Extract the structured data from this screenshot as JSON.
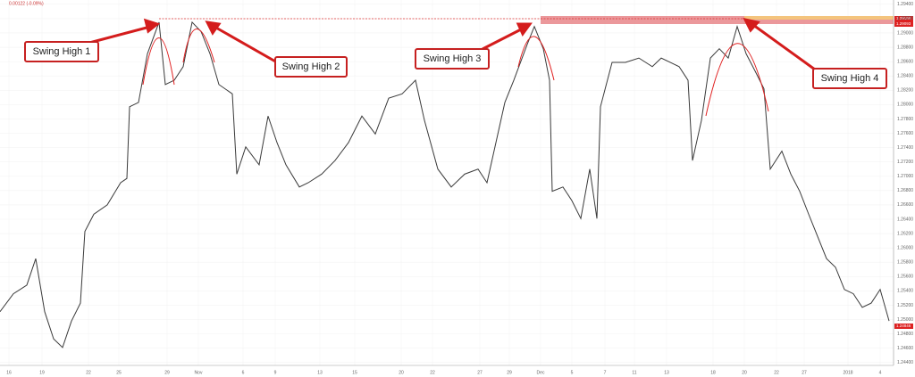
{
  "chart_data": {
    "type": "line",
    "subtitle": "0.00122 (-0.09%)",
    "annotations": [
      "Swing High 1",
      "Swing High 2",
      "Swing High 3",
      "Swing High 4"
    ],
    "price_labels": [
      "1.29168",
      "1.29093",
      "1.24846"
    ],
    "xlim": [
      0,
      1000
    ],
    "xticks": [
      {
        "value": 10,
        "label": "16"
      },
      {
        "value": 47,
        "label": "19"
      },
      {
        "value": 99,
        "label": "22"
      },
      {
        "value": 133,
        "label": "25"
      },
      {
        "value": 187,
        "label": "29"
      },
      {
        "value": 222,
        "label": "Nov"
      },
      {
        "value": 272,
        "label": "6"
      },
      {
        "value": 308,
        "label": "9"
      },
      {
        "value": 358,
        "label": "13"
      },
      {
        "value": 397,
        "label": "15"
      },
      {
        "value": 449,
        "label": "20"
      },
      {
        "value": 484,
        "label": "22"
      },
      {
        "value": 537,
        "label": "27"
      },
      {
        "value": 570,
        "label": "29"
      },
      {
        "value": 605,
        "label": "Dec"
      },
      {
        "value": 640,
        "label": "5"
      },
      {
        "value": 677,
        "label": "7"
      },
      {
        "value": 710,
        "label": "11"
      },
      {
        "value": 746,
        "label": "13"
      },
      {
        "value": 798,
        "label": "18"
      },
      {
        "value": 833,
        "label": "20"
      },
      {
        "value": 869,
        "label": "22"
      },
      {
        "value": 900,
        "label": "27"
      },
      {
        "value": 949,
        "label": "2018"
      },
      {
        "value": 985,
        "label": "4"
      }
    ],
    "ylim": [
      1.2436,
      1.2946
    ],
    "yticks": [
      {
        "value": 1.244,
        "label": "1.24400"
      },
      {
        "value": 1.246,
        "label": "1.24600"
      },
      {
        "value": 1.248,
        "label": "1.24800"
      },
      {
        "value": 1.25,
        "label": "1.25000"
      },
      {
        "value": 1.252,
        "label": "1.25200"
      },
      {
        "value": 1.254,
        "label": "1.25400"
      },
      {
        "value": 1.256,
        "label": "1.25600"
      },
      {
        "value": 1.258,
        "label": "1.25800"
      },
      {
        "value": 1.26,
        "label": "1.26000"
      },
      {
        "value": 1.262,
        "label": "1.26200"
      },
      {
        "value": 1.264,
        "label": "1.26400"
      },
      {
        "value": 1.266,
        "label": "1.26600"
      },
      {
        "value": 1.268,
        "label": "1.26800"
      },
      {
        "value": 1.27,
        "label": "1.27000"
      },
      {
        "value": 1.272,
        "label": "1.27200"
      },
      {
        "value": 1.274,
        "label": "1.27400"
      },
      {
        "value": 1.276,
        "label": "1.27600"
      },
      {
        "value": 1.278,
        "label": "1.27800"
      },
      {
        "value": 1.28,
        "label": "1.28000"
      },
      {
        "value": 1.282,
        "label": "1.28200"
      },
      {
        "value": 1.284,
        "label": "1.28400"
      },
      {
        "value": 1.286,
        "label": "1.28600"
      },
      {
        "value": 1.288,
        "label": "1.28800"
      },
      {
        "value": 1.29,
        "label": "1.29000"
      },
      {
        "value": 1.292,
        "label": "1.29200"
      },
      {
        "value": 1.294,
        "label": "1.29400"
      }
    ],
    "series": [
      {
        "color": "#3a3a3a",
        "x": [
          0,
          15,
          30,
          40,
          50,
          60,
          70,
          80,
          90,
          95,
          105,
          120,
          135,
          142,
          145,
          155,
          165,
          178,
          185,
          195,
          205,
          215,
          225,
          235,
          245,
          260,
          265,
          275,
          290,
          300,
          310,
          320,
          335,
          345,
          360,
          375,
          390,
          405,
          420,
          435,
          450,
          465,
          475,
          490,
          505,
          520,
          535,
          545,
          555,
          565,
          575,
          590,
          598,
          608,
          615,
          618,
          630,
          640,
          650,
          660,
          668,
          672,
          685,
          700,
          715,
          730,
          740,
          750,
          760,
          770,
          775,
          785,
          795,
          805,
          815,
          825,
          835,
          845,
          855,
          862,
          875,
          885,
          895,
          905,
          915,
          925,
          935,
          945,
          955,
          965,
          975,
          985,
          995
        ],
        "values": [
          1.2511,
          1.2536,
          1.2548,
          1.2585,
          1.2511,
          1.2473,
          1.2461,
          1.2498,
          1.2523,
          1.2623,
          1.2647,
          1.266,
          1.2691,
          1.2697,
          1.2797,
          1.2803,
          1.2871,
          1.2915,
          1.2828,
          1.2834,
          1.2853,
          1.2915,
          1.2902,
          1.2871,
          1.2828,
          1.2815,
          1.2703,
          1.2741,
          1.2716,
          1.2784,
          1.2747,
          1.2716,
          1.2685,
          1.2691,
          1.2703,
          1.2722,
          1.2747,
          1.2784,
          1.2759,
          1.2809,
          1.2815,
          1.2834,
          1.2778,
          1.271,
          1.2685,
          1.2703,
          1.271,
          1.2691,
          1.2747,
          1.2803,
          1.2834,
          1.2884,
          1.2909,
          1.2878,
          1.2834,
          1.2679,
          1.2685,
          1.2666,
          1.2641,
          1.271,
          1.2641,
          1.2797,
          1.2859,
          1.2859,
          1.2865,
          1.2853,
          1.2865,
          1.2859,
          1.2853,
          1.2834,
          1.2722,
          1.2778,
          1.2865,
          1.2878,
          1.2865,
          1.2909,
          1.2871,
          1.2847,
          1.2822,
          1.271,
          1.2735,
          1.2703,
          1.2679,
          1.2647,
          1.2616,
          1.2585,
          1.2573,
          1.2542,
          1.2536,
          1.2517,
          1.2523,
          1.2542,
          1.2498
        ]
      }
    ]
  }
}
